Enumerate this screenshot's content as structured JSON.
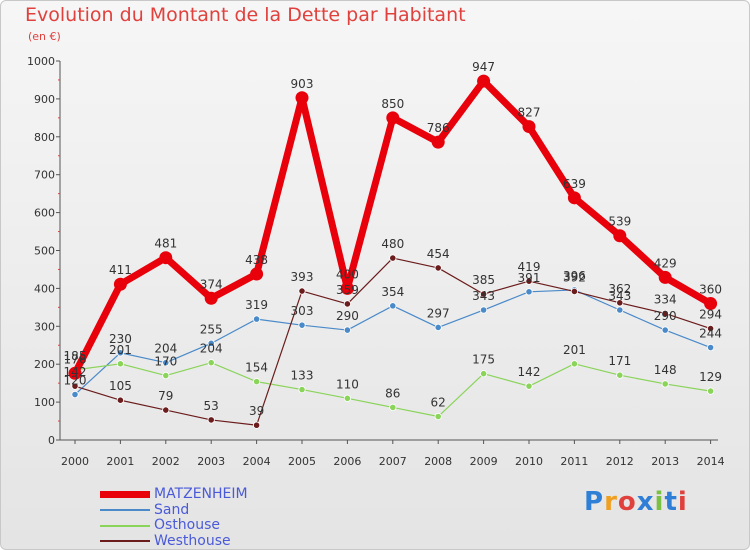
{
  "title": "Evolution du Montant de la Dette par Habitant",
  "subtitle": "(en €)",
  "logo": {
    "text": "Proxiti",
    "colors": [
      "#2f7fd6",
      "#f0a020",
      "#e0413c",
      "#2f7fd6",
      "#7ac143",
      "#2f7fd6",
      "#e0413c"
    ]
  },
  "chart_data": {
    "type": "line",
    "x": [
      "2000",
      "2001",
      "2002",
      "2003",
      "2004",
      "2005",
      "2006",
      "2007",
      "2008",
      "2009",
      "2010",
      "2011",
      "2012",
      "2013",
      "2014"
    ],
    "yticks": [
      "0",
      "100",
      "200",
      "300",
      "400",
      "500",
      "600",
      "700",
      "800",
      "900",
      "1000"
    ],
    "ylim": [
      0,
      1000
    ],
    "grid": false,
    "legend_position": "bottom-left",
    "series": [
      {
        "name": "MATZENHEIM",
        "color": "#e8000b",
        "values": [
          176,
          411,
          481,
          374,
          438,
          903,
          400,
          850,
          786,
          947,
          827,
          639,
          539,
          429,
          360
        ]
      },
      {
        "name": "Sand",
        "color": "#4a8ac9",
        "values": [
          120,
          230,
          204,
          255,
          319,
          303,
          290,
          354,
          297,
          343,
          391,
          396,
          343,
          290,
          244
        ]
      },
      {
        "name": "Osthouse",
        "color": "#8ad45a",
        "values": [
          185,
          201,
          170,
          204,
          154,
          133,
          110,
          86,
          62,
          175,
          142,
          201,
          171,
          148,
          129
        ]
      },
      {
        "name": "Westhouse",
        "color": "#6b1c1c",
        "values": [
          142,
          105,
          79,
          53,
          39,
          393,
          359,
          480,
          454,
          385,
          419,
          392,
          362,
          334,
          294
        ]
      }
    ]
  }
}
